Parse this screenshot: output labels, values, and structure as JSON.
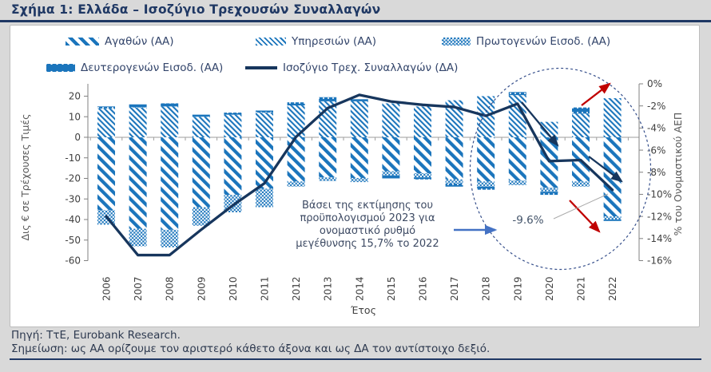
{
  "page": {
    "title": "Σχήμα 1: Ελλάδα – Ισοζύγιο Τρεχουσών Συναλλαγών",
    "source_line": "Πηγή: ΤτΕ, Eurobank Research.",
    "note_line": "Σημείωση: ως ΑΑ ορίζουμε τον αριστερό κάθετο άξονα και ως ΔΑ τον αντίστοιχο δεξιό."
  },
  "colors": {
    "accent_navy": "#1F3864",
    "bar_blue": "#1B75BC",
    "line_navy": "#17365D",
    "red_arrow": "#C00000",
    "callout_arrow_blue": "#4472C4",
    "axis_text": "#404040",
    "axis_title_gray": "#595959",
    "gridline_gray": "#9E9E9E",
    "leader_gray": "#ABABAB",
    "panel_border": "#BDBDBD",
    "page_bg": "#D9D9D9",
    "panel_bg": "#FFFFFF"
  },
  "legend": {
    "items": [
      {
        "key": "goods",
        "label": "Αγαθών (ΑΑ)"
      },
      {
        "key": "services",
        "label": "Υπηρεσιών (ΑΑ)"
      },
      {
        "key": "primary",
        "label": "Πρωτογενών Εισοδ. (ΑΑ)"
      },
      {
        "key": "secondary",
        "label": "Δευτερογενών Εισοδ. (ΑΑ)"
      },
      {
        "key": "line",
        "label": "Ισοζύγιο Τρεχ. Συναλλαγών (ΔΑ)"
      }
    ]
  },
  "chart_data": {
    "type": "bar",
    "subtype": "stacked-bars-with-line",
    "categories": [
      "2006",
      "2007",
      "2008",
      "2009",
      "2010",
      "2011",
      "2012",
      "2013",
      "2014",
      "2015",
      "2016",
      "2017",
      "2018",
      "2019",
      "2020",
      "2021",
      "2022"
    ],
    "bar_series": [
      {
        "key": "goods",
        "name": "Αγαθών (ΑΑ)",
        "axis": "left",
        "pattern": "goods",
        "values": [
          -35.5,
          -44.5,
          -45,
          -34,
          -28,
          -25,
          -21.5,
          -19.5,
          -19.8,
          -16.5,
          -17.5,
          -20.5,
          -21.5,
          -21,
          -24.5,
          -21.5,
          -38.5
        ]
      },
      {
        "key": "services",
        "name": "Υπηρεσιών (ΑΑ)",
        "axis": "left",
        "pattern": "services",
        "values": [
          14,
          14.5,
          15,
          10,
          11,
          12,
          15.5,
          17.5,
          17.5,
          16.5,
          15,
          18,
          20,
          20.5,
          7.5,
          11.5,
          19
        ]
      },
      {
        "key": "primary",
        "name": "Πρωτογενών Εισοδ. (ΑΑ)",
        "axis": "left",
        "pattern": "primary",
        "values": [
          -7,
          -8.5,
          -8.5,
          -9,
          -8.5,
          -9,
          -2.5,
          -1.8,
          -2,
          -2,
          -2,
          -2,
          -2.5,
          -2.3,
          -2,
          -2.5,
          -1.5
        ]
      },
      {
        "key": "secondary",
        "name": "Δευτερογενών Εισοδ. (ΑΑ)",
        "axis": "left",
        "pattern": "secondary",
        "values": [
          1,
          1.5,
          1.5,
          1,
          1,
          1,
          1.5,
          2,
          1,
          -1.5,
          -1,
          -1.5,
          -1.5,
          1.5,
          -1.5,
          3,
          -0.7
        ]
      }
    ],
    "line_series": {
      "key": "balance",
      "name": "Ισοζύγιο Τρεχ. Συναλλαγών (ΔΑ)",
      "axis": "right",
      "values": [
        -12,
        -15.5,
        -15.5,
        -13.2,
        -11,
        -9,
        -4.8,
        -2.2,
        -1,
        -1.6,
        -1.9,
        -2.1,
        -2.9,
        -1.8,
        -7,
        -6.9,
        -9.6
      ]
    },
    "left_axis": {
      "title": "Δις € σε Τρέχουσες Τιμές",
      "min": -60,
      "max": 26,
      "ticks": [
        20,
        10,
        0,
        -10,
        -20,
        -30,
        -40,
        -50,
        -60
      ]
    },
    "right_axis": {
      "title": "% του Ονομαστικού ΑΕΠ",
      "min": -16,
      "max": 0,
      "tick_values": [
        0,
        -2,
        -4,
        -6,
        -8,
        -10,
        -12,
        -14,
        -16
      ],
      "tick_labels": [
        "0%",
        "-2%",
        "-4%",
        "-6%",
        "-8%",
        "-10%",
        "-12%",
        "-14%",
        "-16%"
      ]
    },
    "x_axis": {
      "title": "Έτος"
    },
    "grid": "zero-line-only",
    "legend_position": "top",
    "annotations": {
      "callout_lines": [
        "Βάσει της εκτίμησης του",
        "προϋπολογισμού 2023 για",
        "ονομαστικό ρυθμό",
        "μεγέθυνσης 15,7% το 2022"
      ],
      "value_label": "-9.6%",
      "highlight_ellipse_years": "2019–2022"
    }
  }
}
